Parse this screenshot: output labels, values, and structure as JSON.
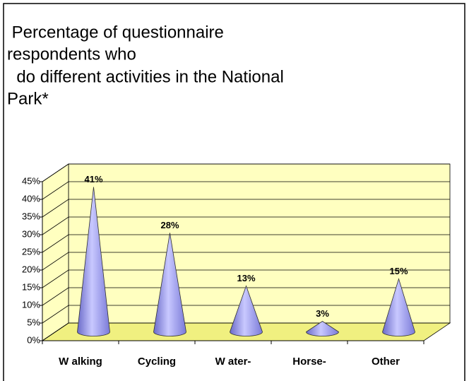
{
  "chart_data": {
    "type": "cone",
    "title": [
      " Percentage of questionnaire",
      "respondents who",
      "  do different activities in the National",
      "Park*"
    ],
    "categories": [
      "W alking",
      "Cycling",
      "W ater-",
      "Horse-",
      "Other"
    ],
    "values": [
      41,
      28,
      13,
      3,
      15
    ],
    "value_labels": [
      "41%",
      "28%",
      "13%",
      "3%",
      "15%"
    ],
    "color": "#9999ff",
    "ylim": [
      0,
      45
    ],
    "yticks": [
      {
        "value": 0,
        "label": "0%"
      },
      {
        "value": 5,
        "label": "5%"
      },
      {
        "value": 10,
        "label": "10%"
      },
      {
        "value": 15,
        "label": "15%"
      },
      {
        "value": 20,
        "label": "20%"
      },
      {
        "value": 25,
        "label": "25%"
      },
      {
        "value": 30,
        "label": "30%"
      },
      {
        "value": 35,
        "label": "35%"
      },
      {
        "value": 40,
        "label": "40%"
      },
      {
        "value": 45,
        "label": "45%"
      }
    ],
    "grid": true
  }
}
